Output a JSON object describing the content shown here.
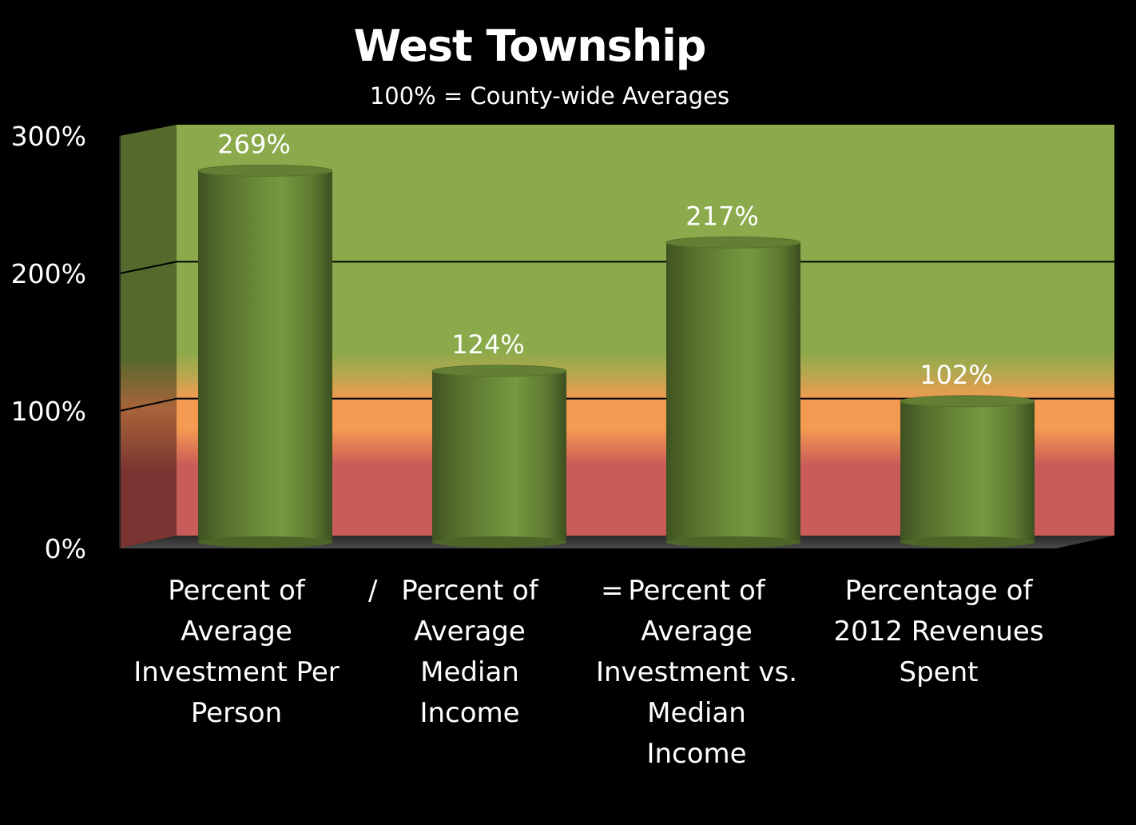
{
  "chart_data": {
    "type": "bar",
    "title": "West Township",
    "subtitle": "100% = County-wide Averages",
    "categories": [
      "Percent of\nAverage\nInvestment Per\nPerson",
      "Percent of\nAverage\nMedian\nIncome",
      "Percent of\nAverage\nInvestment vs.\nMedian\nIncome",
      "Percentage of\n2012 Revenues\nSpent"
    ],
    "values": [
      269,
      124,
      217,
      102
    ],
    "value_labels": [
      "269%",
      "124%",
      "217%",
      "102%"
    ],
    "ylim": [
      0,
      300
    ],
    "yticks": [
      0,
      100,
      200,
      300
    ],
    "ytick_labels": [
      "0%",
      "100%",
      "200%",
      "300%"
    ],
    "operators": [
      "/",
      "="
    ],
    "grid": true,
    "colors": {
      "bar": "#6b8a3a",
      "band_green": "#8caa4c",
      "band_orange": "#f59a54",
      "band_red": "#c85a58"
    }
  }
}
